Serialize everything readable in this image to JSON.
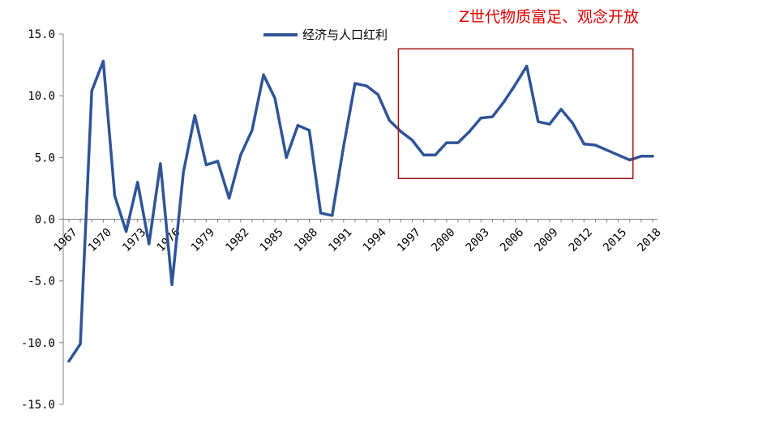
{
  "chart_data": {
    "type": "line",
    "title": "",
    "xlabel": "",
    "ylabel": "",
    "ylim": [
      -15,
      15
    ],
    "yticks": [
      "15.0",
      "10.0",
      "5.0",
      "0.0",
      "-5.0",
      "-10.0",
      "-15.0"
    ],
    "xticks": [
      "1967",
      "1970",
      "1973",
      "1976",
      "1979",
      "1982",
      "1985",
      "1988",
      "1991",
      "1994",
      "1997",
      "2000",
      "2003",
      "2006",
      "2009",
      "2012",
      "2015",
      "2018"
    ],
    "grid": false,
    "legend": {
      "position": "top-center",
      "entries": [
        "经济与人口红利"
      ]
    },
    "series": [
      {
        "name": "经济与人口红利",
        "color": "#2f5597",
        "x": [
          1967,
          1968,
          1969,
          1970,
          1971,
          1972,
          1973,
          1974,
          1975,
          1976,
          1977,
          1978,
          1979,
          1980,
          1981,
          1982,
          1983,
          1984,
          1985,
          1986,
          1987,
          1988,
          1989,
          1990,
          1991,
          1992,
          1993,
          1994,
          1995,
          1996,
          1997,
          1998,
          1999,
          2000,
          2001,
          2002,
          2003,
          2004,
          2005,
          2006,
          2007,
          2008,
          2009,
          2010,
          2011,
          2012,
          2013,
          2014,
          2015,
          2016,
          2017,
          2018
        ],
        "values": [
          -11.5,
          -10.1,
          10.4,
          12.8,
          1.9,
          -1.0,
          3.0,
          -2.0,
          4.5,
          -5.3,
          3.8,
          8.4,
          4.4,
          4.7,
          1.7,
          5.2,
          7.2,
          11.7,
          9.8,
          5.0,
          7.6,
          7.2,
          0.5,
          0.3,
          5.9,
          11.0,
          10.8,
          10.1,
          8.0,
          7.1,
          6.4,
          5.2,
          5.2,
          6.2,
          6.2,
          7.1,
          8.2,
          8.3,
          9.5,
          10.9,
          12.4,
          7.9,
          7.7,
          8.9,
          7.8,
          6.1,
          6.0,
          5.6,
          5.2,
          4.8,
          5.1,
          5.1
        ]
      }
    ],
    "annotation": {
      "text": "Z世代物质富足、观念开放",
      "color": "#e00000",
      "highlight_box": {
        "x_range": [
          1996,
          2016
        ],
        "y_range": [
          3.3,
          13.8
        ],
        "color": "#a31515"
      }
    }
  }
}
